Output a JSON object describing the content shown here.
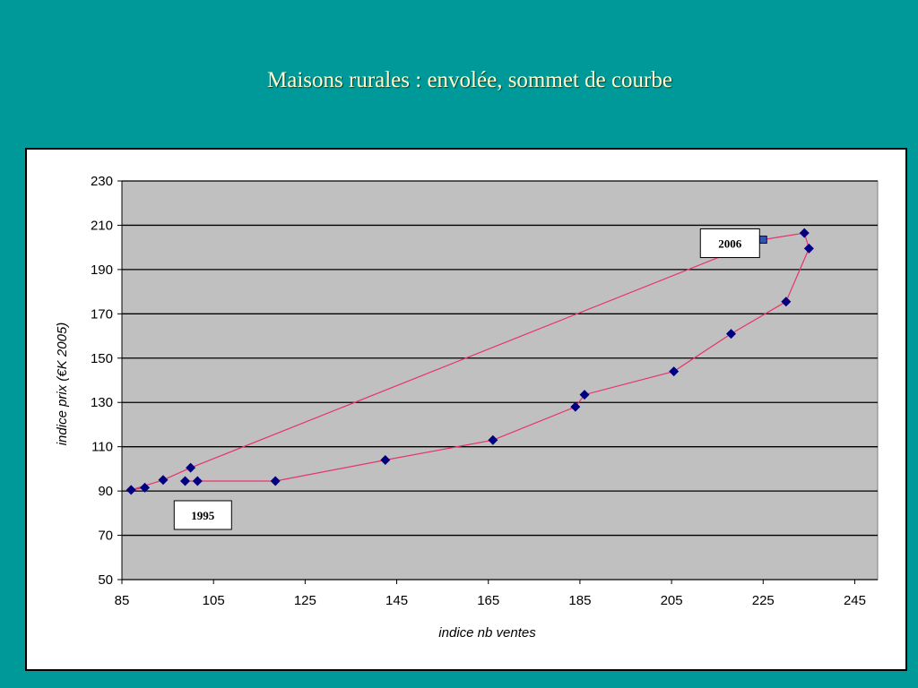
{
  "slide": {
    "title": "Maisons rurales : envolée, sommet de courbe"
  },
  "colors": {
    "background": "#009999",
    "title": "#ffffcc",
    "plot_area": "#c0c0c0",
    "line": "#e8336b",
    "marker": "#000080"
  },
  "chart_data": {
    "type": "scatter",
    "title": "",
    "xlabel": "indice nb ventes",
    "ylabel": "indice prix (€K 2005)",
    "xlim": [
      85,
      250
    ],
    "ylim": [
      50,
      230
    ],
    "xticks": [
      85,
      105,
      125,
      145,
      165,
      185,
      205,
      225,
      245
    ],
    "yticks": [
      50,
      70,
      90,
      110,
      130,
      150,
      170,
      190,
      210,
      230
    ],
    "grid": "horizontal",
    "series": [
      {
        "points": [
          {
            "x": 101.5,
            "y": 94.5
          },
          {
            "x": 98.8,
            "y": 94.5
          },
          {
            "x": 118.5,
            "y": 94.5
          },
          {
            "x": 142.5,
            "y": 104
          },
          {
            "x": 166,
            "y": 113
          },
          {
            "x": 184,
            "y": 128
          },
          {
            "x": 186,
            "y": 133.5
          },
          {
            "x": 205.5,
            "y": 144
          },
          {
            "x": 218,
            "y": 161
          },
          {
            "x": 230,
            "y": 175.5
          },
          {
            "x": 235,
            "y": 199.5
          },
          {
            "x": 234,
            "y": 206.5
          },
          {
            "x": 225,
            "y": 203.5
          },
          {
            "x": 100,
            "y": 100.5
          },
          {
            "x": 94,
            "y": 95
          },
          {
            "x": 87,
            "y": 90.5
          },
          {
            "x": 90,
            "y": 91.5
          }
        ]
      }
    ],
    "annotations": [
      {
        "text": "1995",
        "x": 101.5,
        "y": 94.5
      },
      {
        "text": "2006",
        "x": 225,
        "y": 203.5
      }
    ]
  }
}
